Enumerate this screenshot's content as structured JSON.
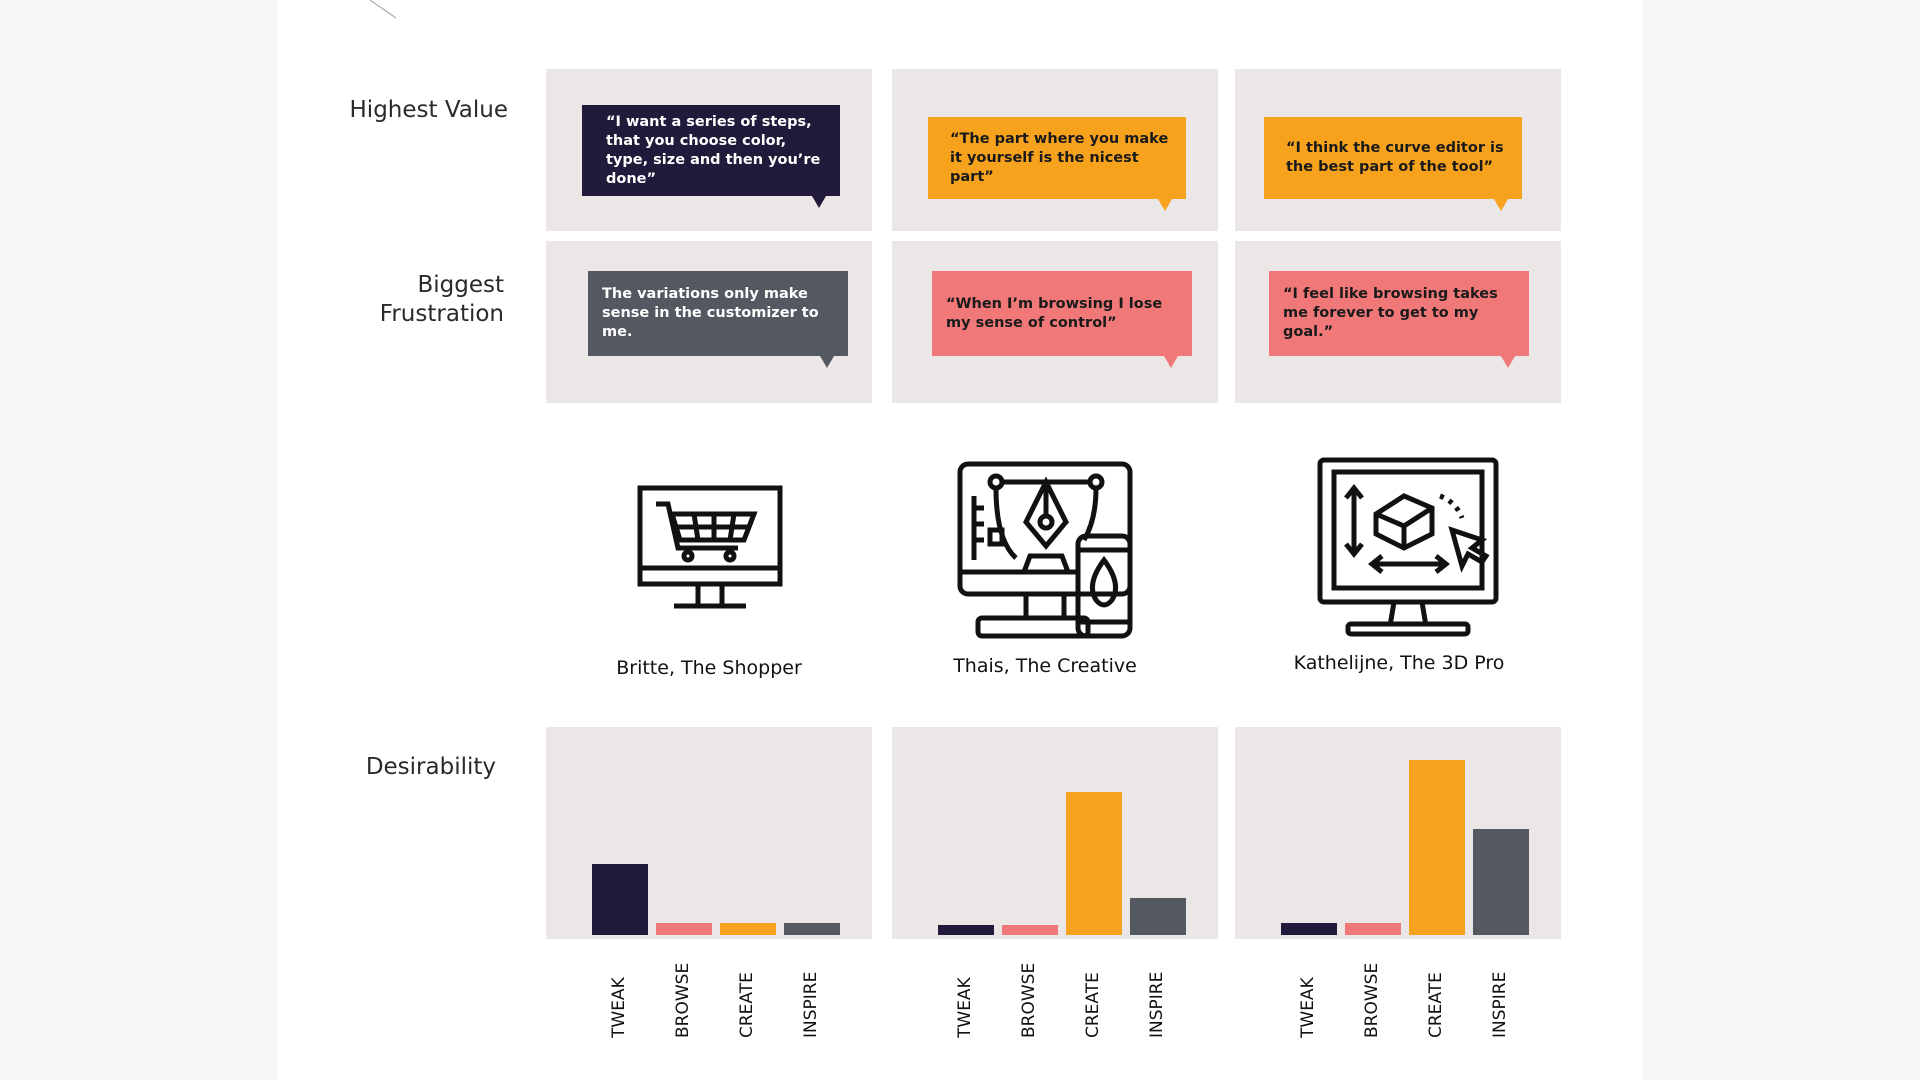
{
  "row_labels": {
    "highest_value": "Highest Value",
    "biggest_frustration_line1": "Biggest",
    "biggest_frustration_line2": "Frustration",
    "desirability": "Desirability"
  },
  "personas": [
    {
      "name": "Britte, The Shopper",
      "icon": "shopping-cart-monitor-icon",
      "value_quote": "“I want a series of steps, that you choose color, type, size and then you’re done”",
      "frustration_quote": "The variations only make sense in the customizer to me."
    },
    {
      "name": "Thais, The Creative",
      "icon": "pen-tool-design-monitor-icon",
      "value_quote": "“The part where you make it yourself is the nicest part”",
      "frustration_quote": "“When I’m browsing I lose my sense of control”"
    },
    {
      "name": "Kathelijne, The 3D Pro",
      "icon": "3d-modeling-monitor-icon",
      "value_quote": "“I think the curve editor is the best part of the tool”",
      "frustration_quote": "“I feel like browsing takes me forever to get to my goal.”"
    }
  ],
  "colors": {
    "tweak": "#221a3a",
    "browse": "#f07878",
    "create": "#f7a21d",
    "inspire": "#545860",
    "panel": "#ece7e7"
  },
  "chart_data": [
    {
      "type": "bar",
      "categories": [
        "TWEAK",
        "BROWSE",
        "CREATE",
        "INSPIRE"
      ],
      "values": [
        35,
        6,
        6,
        6
      ],
      "ylim": [
        0,
        100
      ]
    },
    {
      "type": "bar",
      "categories": [
        "TWEAK",
        "BROWSE",
        "CREATE",
        "INSPIRE"
      ],
      "values": [
        5,
        5,
        70,
        18
      ],
      "ylim": [
        0,
        100
      ]
    },
    {
      "type": "bar",
      "categories": [
        "TWEAK",
        "BROWSE",
        "CREATE",
        "INSPIRE"
      ],
      "values": [
        6,
        6,
        86,
        52
      ],
      "ylim": [
        0,
        100
      ]
    }
  ]
}
